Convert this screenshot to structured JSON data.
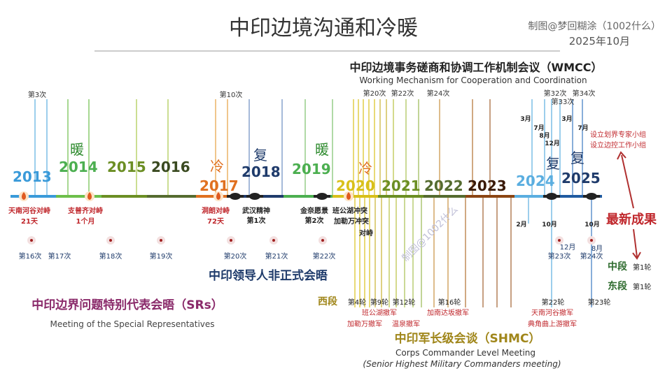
{
  "header": {
    "title": "中印边境沟通和冷暖",
    "credit": "制图@梦回糊涂（1002什么）",
    "date": "2025年10月",
    "watermark": "制图@1002什么"
  },
  "wmcc": {
    "title": "中印边境事务磋商和协调工作机制会议（WMCC）",
    "subtitle": "Working Mechanism for Cooperation and Coordination"
  },
  "years": [
    "2013",
    "2014",
    "2015",
    "2016",
    "2017",
    "2018",
    "2019",
    "2020",
    "2021",
    "2022",
    "2023",
    "2024",
    "2025"
  ],
  "moods": [
    {
      "label": "暖",
      "color": "#2e8b2e"
    },
    {
      "label": "冷",
      "color": "#e07020"
    },
    {
      "label": "复",
      "color": "#1f3b6b"
    },
    {
      "label": "暖",
      "color": "#2e8b2e"
    },
    {
      "label": "冷",
      "color": "#e07020"
    },
    {
      "label": "复",
      "color": "#1f3b6b"
    },
    {
      "label": "复",
      "color": "#1f3b6b"
    }
  ],
  "wmcc_labels": [
    "第3次",
    "第10次",
    "第20次",
    "第22次",
    "第24次",
    "第32次",
    "第33次",
    "第34次"
  ],
  "wmcc_months": [
    "3月",
    "7月",
    "8月",
    "12月",
    "3月",
    "7月"
  ],
  "latest": {
    "title": "最新成果",
    "items": [
      "设立划界专家小组",
      "设立边控工作小组"
    ],
    "color": "#c0282d"
  },
  "events": [
    {
      "label": "天南河谷对峙"
    },
    {
      "label": "21天"
    },
    {
      "label": "支普齐对峙"
    },
    {
      "label": "1个月"
    },
    {
      "label": "洞朗对峙"
    },
    {
      "label": "72天"
    },
    {
      "label": "武汉精神"
    },
    {
      "label": "第1次"
    },
    {
      "label": "金奈愿景"
    },
    {
      "label": "第2次"
    },
    {
      "label": "班公湖冲突"
    },
    {
      "label": "加勒万冲突"
    },
    {
      "label": "对峙"
    }
  ],
  "srs": {
    "title": "中印边界问题特别代表会晤（SRs）",
    "subtitle": "Meeting of the Special Representatives",
    "meetings": [
      "第16次",
      "第17次",
      "第18次",
      "第19次",
      "第20次",
      "第21次",
      "第22次",
      "第23次",
      "第24次"
    ],
    "months": [
      "12月",
      "8月"
    ]
  },
  "leaders": {
    "title": "中印领导人非正式会晤"
  },
  "shmc": {
    "title": "中印军长级会谈（SHMC）",
    "subtitle": "Corps Commander Level Meeting",
    "subtitle2": "(Senior Highest Military Commanders meeting)",
    "west": "西段",
    "rounds": [
      "第4轮",
      "第9轮",
      "第12轮",
      "第16轮",
      "第22轮",
      "第23轮"
    ],
    "withdrawals": [
      "班公湖撤军",
      "加勒万撤军",
      "温泉撤军",
      "加南达坂撤军",
      "天南河谷撤军",
      "典角曲上游撤军"
    ],
    "months": [
      "2月",
      "10月",
      "10月"
    ]
  },
  "segments": {
    "middle": "中段",
    "middle_round": "第1轮",
    "east": "东段",
    "east_round": "第1轮"
  },
  "colors": {
    "blue": "#3a9ad9",
    "green": "#4caf50",
    "olive": "#6b8e23",
    "orange": "#e07020",
    "navy": "#1f3b6b",
    "yellow": "#d8c01a",
    "brown": "#8b4513",
    "lightblue": "#5aaee0"
  }
}
